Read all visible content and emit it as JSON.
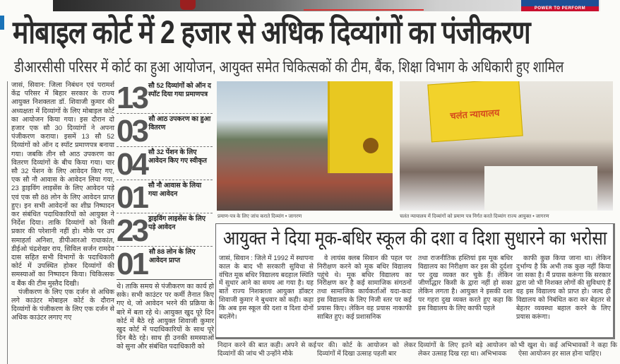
{
  "ad": {
    "tagline": "POWER TO PERFORM"
  },
  "headline": "मोबाइल कोर्ट में 2 हजार से अधिक दिव्यांगों का पंजीकरण",
  "subheadline": "डीआरसीसी परिसर में कोर्ट का हुआ आयोजन, आयुक्त समेत चिकित्सकों की टीम, बैंक, शिक्षा विभाग के अधिकारी हुए शामिल",
  "main_story": {
    "paragraphs": [
      "जासं, सिवान: जिला निबंधन एवं परामर्श केंद्र परिसर में बिहार सरकार के राज्य आयुक्त निशक्तता डॉ. शिवाजी कुमार की अध्यक्षता में दिव्यांगों के लिए मोबाइल कोर्ट का आयोजन किया गया। इस दौरान दो हजार एक सौ 30 दिव्यांगों ने अपना पंजीकरण कराया। इसमें 13 सौ 52 दिव्यांगों को ऑन द स्पॉट प्रमाणपत्र बनाया गया। जबकि तीन सौ आठ उपकरण का वितरण दिव्यांगों के बीच किया गया। चार सौ 32 पेंशन के लिए आवेदन किए गए, एक सौ नौ आवास के आवेदन लिया गया, 23 ड्राइविंग लाइसेंस के लिए आवेदन पड़े एवं एक सौ 88 लोन के लिए आवेदन प्राप्त हुए। इन सभी आवेदनों का शीघ्र निष्पादन कर संबंधित पदाधिकारियों को आयुक्त ने निर्देश दिया। ताकि दिव्यांगों को किसी प्रकार की परेशानी नहीं हो। मौके पर उप समाहर्ता अनिशा, डीपीआरओ राधाकांत, डीईओ चंद्रशेखर राय, सिविल सर्जन रामदेव दास सहित सभी विभागों के पदाधिकारी कोर्ट में उपस्थित होकर दिव्यांगों की समस्याओं का निष्पादन किया। चिकित्सक व बैंक की टीम मुस्तैद दिखी।",
      "पंजीकरण के लिए एक दर्जन से अधिक लगे काउंटर मोबाइल कोर्ट के दौरान दिव्यांगों के पंजीकरण के लिए एक दर्जन से अधिक काउंटर लगाए गए"
    ],
    "continuation": "थे। ताकि समय से पंजीकरण का कार्य हो सके। सभी काउंटर पर कर्मी तैनात किए गए थे, जो आवेदन भरने की प्रक्रिया के बारे में बता रहे थे। आयुक्त खुद पूरे दिन कोर्ट में बैठे रहे आयुक्त शिवाजी कुमार खुद कोर्ट में पदाधिकारियों के साथ पूरे दिन बैठे रहे। साथ ही उनकी समस्याओं को सुना और संबंधित पदाधिकारी को",
    "lower_columns": [
      "निदान करने की बात कही। अपने से कई दिव्यांगों की जांच भी उन्होंने मौके",
      "पर की। कोर्ट के आयोजन को लेकर दिव्यांगों में दिखा उत्साह पहली बार",
      "दिव्यांगों के लिए इतने बड़े आयोजन को लेकर उत्साह दिख रहा था। अभिभावक",
      "भी खुश थे। कई अभिभावकों ने कहा कि ऐसा आयोजन हर साल होना चाहिए।"
    ]
  },
  "stats": [
    {
      "number": "13",
      "label": "सौ 52 दिव्यांगों को ऑन द स्पॉट दिया गया प्रमाणपत्र"
    },
    {
      "number": "03",
      "label": "सौ आठ उपकरण का हुआ वितरण"
    },
    {
      "number": "04",
      "label": "सौ 32 पेंशन के लिए आवेदन किए गए स्वीकृत"
    },
    {
      "number": "01",
      "label": "सौ नौ आवास के लिया गया आवेदन"
    },
    {
      "number": "23",
      "label": "ड्राइविंग लाइसेंस के लिए पड़े आवेदन"
    },
    {
      "number": "01",
      "label": "सौ 88 लोन के लिए आवेदन प्राप्त"
    }
  ],
  "photos": [
    {
      "caption": "प्रमाण-पत्र के लिए जांच कराते दिव्यांग • जागरण"
    },
    {
      "banner_text": "चलंत न्यायालय",
      "caption": "चलंत न्यायालय में दिव्यांगों को प्रमाण पत्र निर्गत करते दिव्यांग राज्य आयुक्त • जागरण"
    }
  ],
  "boxed_story": {
    "headline": "आयुक्त ने दिया मूक-बधिर स्कूल की दशा व दिशा सुधारने का भरोसा",
    "columns": [
      "जासं, सिवान : जिले में 1992 में स्थापना काल के बाद भी सरकारी सुविधा से वंचित मूक बधिर विद्यालय बदहाल स्थिति में सुधार आने का समय आ गया है। यह बातें राज्य निशक्तता आयुक्त डॉक्टर शिवाजी कुमार ने बुधवार को कही। कहा कि अब इस स्कूल की दशा व दिशा दोनों बदलेंगे।",
      "वे लायंस क्लब सिवान की पहल पर निरीक्षण करने को मूक बधिर विद्यालय पहुंचे थे। मूक बधिर विद्यालय का निरीक्षण कर है कई सामाजिक संगठनों तथा सामाजिक कार्यकर्ताओं यदा-कदा इस विद्यालय के लिए निजी स्तर पर कई प्रयास किए। लेकिन वह प्रयास नाकाफी साबित हुए। कई प्रशासनिक",
      "तथा राजनीतिक हस्तियां इस मूक बधिर विद्यालय का निरीक्षण कर इस की दुर्दशा पर दुख व्यक्त कर चुके हैं। लेकिन जीर्णोद्धार किसी के द्वारा नहीं हो सका लेकिन लगता है। आयुक्त ने इसकी दशा पर गहरा दुख व्यक्त करते हुए कहा कि इस विद्यालय के लिए काफी पहले",
      "काफी कुछ किया जाना था। लेकिन दुर्भाग्य है कि अभी तक कुछ नहीं किया जा सका है। मैं प्रयास करूंगा कि सरकार द्वारा जो भी निशक्त लोगों की सुविधाएं हैं वह इस विद्यालय को प्राप्त हो। जल्द ही विद्यालय को निबंधित करा कर बेहतर से बेहतर व्यवस्था बहाल करने के लिए प्रयास करूंगा।"
    ]
  }
}
